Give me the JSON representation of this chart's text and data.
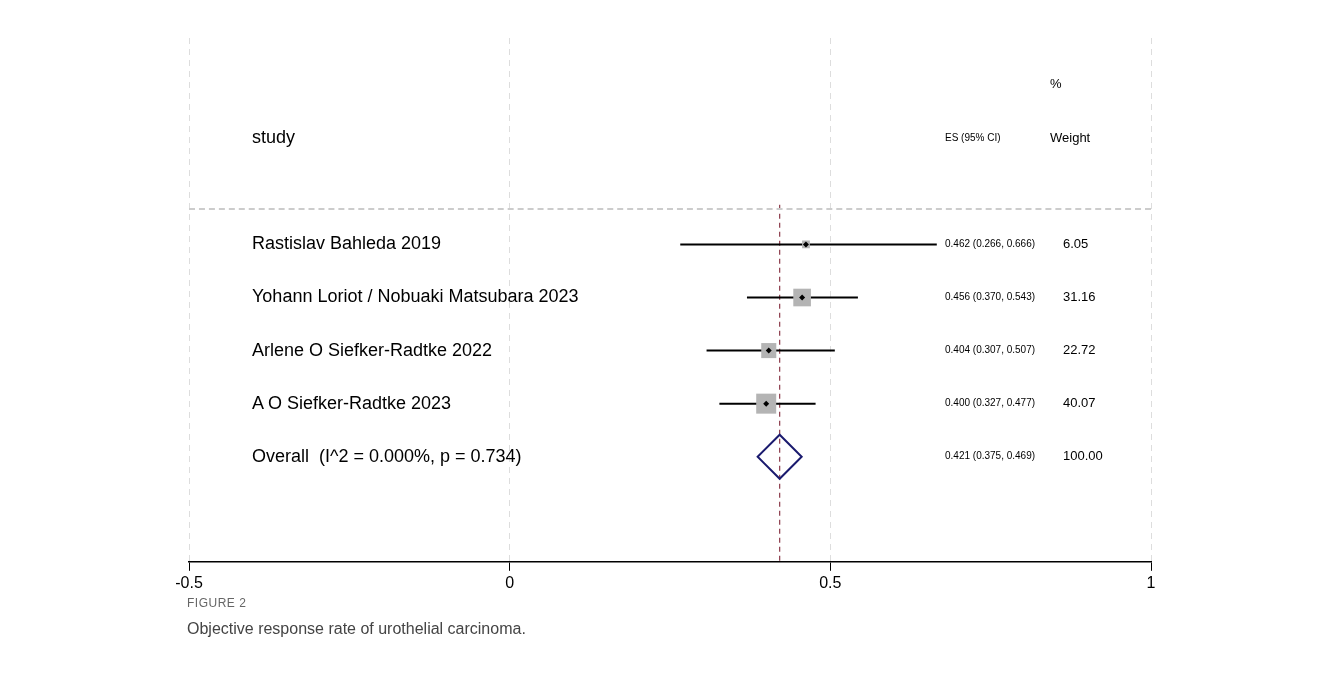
{
  "chart_data": {
    "type": "scatter",
    "orientation": "horizontal",
    "ylabel": "study",
    "categories": [
      "Rastislav Bahleda 2019",
      "Yohann Loriot / Nobuaki Matsubara 2023",
      "Arlene O Siefker-Radtke 2022",
      "A O Siefker-Radtke 2023",
      "Overall  (I^2 = 0.000%, p = 0.734)"
    ],
    "series": [
      {
        "marker": "square",
        "color": "#b4b4b4",
        "values": [
          0.462,
          0.456,
          0.404,
          0.4,
          null
        ],
        "errors": [
          [
            0.266,
            0.666
          ],
          [
            0.37,
            0.543
          ],
          [
            0.307,
            0.507
          ],
          [
            0.327,
            0.477
          ],
          null
        ],
        "sizes": [
          0.151,
          0.778,
          0.567,
          1,
          null
        ]
      },
      {
        "marker": "diamond",
        "color": "#1a1a6e",
        "values": [
          null,
          null,
          null,
          null,
          0.421
        ]
      }
    ],
    "xlim": [
      -0.5,
      1
    ],
    "xticks": [
      -0.5,
      0,
      0.5,
      1
    ],
    "grid": "x",
    "ref_lines": [
      {
        "axis": "x",
        "value": 0.421,
        "color": "#8b3a4a",
        "line_style": "dashed"
      }
    ],
    "annotations": [
      "%",
      "Weight",
      "ES (95% CI)",
      "0.462 (0.266, 0.666)",
      "0.456 (0.370, 0.543)",
      "0.404 (0.307, 0.507)",
      "0.400 (0.327, 0.477)",
      "0.421 (0.375, 0.469)",
      "6.05",
      "31.16",
      "22.72",
      "40.07",
      "100.00",
      "FIGURE 2",
      "Objective response rate of urothelial carcinoma."
    ]
  }
}
